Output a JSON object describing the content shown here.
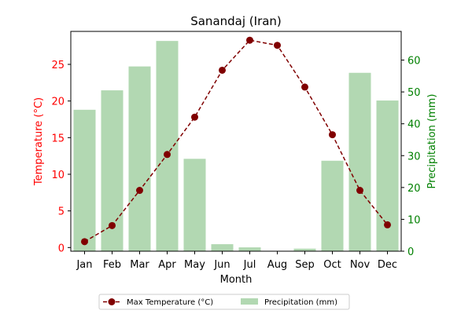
{
  "chart_data": {
    "type": "bar",
    "title": "Sanandaj (Iran)",
    "xlabel": "Month",
    "categories": [
      "Jan",
      "Feb",
      "Mar",
      "Apr",
      "May",
      "Jun",
      "Jul",
      "Aug",
      "Sep",
      "Oct",
      "Nov",
      "Dec"
    ],
    "y_left": {
      "label": "Temperature (°C)",
      "ylim": [
        -0.5,
        29.5
      ],
      "ticks": [
        0,
        5,
        10,
        15,
        20,
        25
      ],
      "color": "#ff0000"
    },
    "y_right": {
      "label": "Precipitation (mm)",
      "ylim": [
        0,
        69
      ],
      "ticks": [
        0,
        10,
        20,
        30,
        40,
        50,
        60
      ],
      "color": "#008000"
    },
    "series": [
      {
        "name": "Max Temperature (°C)",
        "type": "line",
        "axis": "left",
        "color": "#800000",
        "line_style": "dashed",
        "marker": "circle",
        "values": [
          0.8,
          3.0,
          7.8,
          12.7,
          17.8,
          24.2,
          28.3,
          27.6,
          21.9,
          15.4,
          7.8,
          3.1
        ]
      },
      {
        "name": "Precipitation (mm)",
        "type": "bar",
        "axis": "right",
        "color": "#b2d8b2",
        "values": [
          44.4,
          50.5,
          58.0,
          66.0,
          29.0,
          2.2,
          1.2,
          0.1,
          0.8,
          28.4,
          56.0,
          47.3
        ]
      }
    ],
    "legend": {
      "placement": "bottom-center"
    },
    "grid": false
  }
}
